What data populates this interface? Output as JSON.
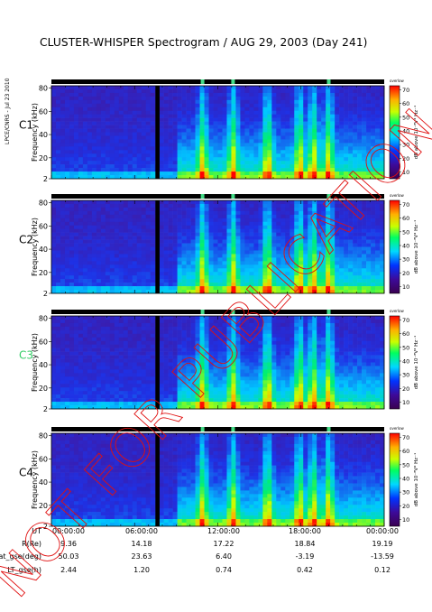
{
  "title": "CLUSTER-WHISPER Spectrogram / AUG 29, 2003 (Day 241)",
  "credit": "LPCE/CNRS - Jul 23 2010",
  "watermark": "NOT FOR PUBLICATION",
  "colors": {
    "c3_label": "#33cc66",
    "background_magenta": "#5a2a8a",
    "data_gap": "#000000"
  },
  "chart_data": {
    "type": "heatmap",
    "ylabel": "Frequency (kHz)",
    "colorbar_label": "dB above 10⁻⁸V² Hz⁻¹",
    "colorbar_ticks": [
      "70",
      "60",
      "50",
      "40",
      "30",
      "20",
      "10"
    ],
    "colorbar_range": [
      5,
      73
    ],
    "freq_ticks": [
      "80",
      "60",
      "40",
      "20",
      "2"
    ],
    "ylim": [
      2,
      82
    ],
    "xlim_hours": [
      0,
      24
    ],
    "gap_hours": [
      7.5,
      7.8
    ],
    "panels": [
      {
        "label": "C1",
        "label_color": "#000000",
        "header": "overlow"
      },
      {
        "label": "C2",
        "label_color": "#000000",
        "header": "overlow"
      },
      {
        "label": "C3",
        "label_color": "#33cc66",
        "header": "overlow"
      },
      {
        "label": "C4",
        "label_color": "#000000",
        "header": "overlow"
      }
    ],
    "ephemeris": {
      "rows": [
        {
          "name": "UT",
          "values": [
            "00:00:00",
            "06:00:00",
            "12:00:00",
            "18:00:00",
            "00:00:00"
          ]
        },
        {
          "name": "R(Re)",
          "values": [
            "9.36",
            "14.18",
            "17.22",
            "18.84",
            "19.19"
          ]
        },
        {
          "name": "Lat_gse(deg)",
          "values": [
            "50.03",
            "23.63",
            "6.40",
            "-3.19",
            "-13.59"
          ]
        },
        {
          "name": "LT_gse(h)",
          "values": [
            "2.44",
            "1.20",
            "0.74",
            "0.42",
            "0.12"
          ]
        }
      ]
    }
  }
}
